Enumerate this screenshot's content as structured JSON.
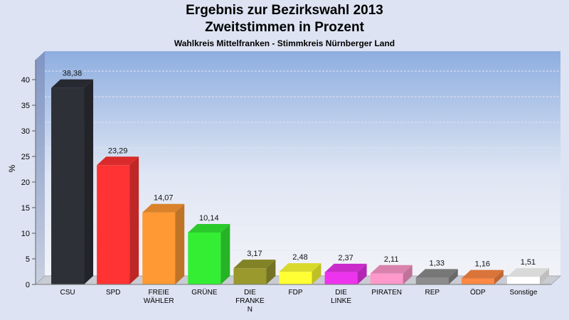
{
  "chart_data": {
    "type": "bar",
    "title": "Ergebnis zur Bezirkswahl 2013",
    "subtitle": "Zweitstimmen in Prozent",
    "subtitle2": "Wahlkreis Mittelfranken - Stimmkreis Nürnberger Land",
    "ylabel": "%",
    "xlabel": "",
    "ylim": [
      0,
      40
    ],
    "yticks": [
      "0",
      "5",
      "10",
      "15",
      "20",
      "25",
      "30",
      "35",
      "40"
    ],
    "categories": [
      [
        "CSU"
      ],
      [
        "SPD"
      ],
      [
        "FREIE",
        "WÄHLER"
      ],
      [
        "GRÜNE"
      ],
      [
        "DIE",
        "FRANKE",
        "N"
      ],
      [
        "FDP"
      ],
      [
        "DIE",
        "LINKE"
      ],
      [
        "PIRATEN"
      ],
      [
        "REP"
      ],
      [
        "ÖDP"
      ],
      [
        "Sonstige"
      ]
    ],
    "values": [
      38.38,
      23.29,
      14.07,
      10.14,
      3.17,
      2.48,
      2.37,
      2.11,
      1.33,
      1.16,
      1.51
    ],
    "value_labels": [
      "38,38",
      "23,29",
      "14,07",
      "10,14",
      "3,17",
      "2,48",
      "2,37",
      "2,11",
      "1,33",
      "1,16",
      "1,51"
    ],
    "colors": [
      "#2e3038",
      "#ff3333",
      "#ff9933",
      "#33ee33",
      "#99992e",
      "#ffff33",
      "#ee33ee",
      "#ff99cc",
      "#8c8c8c",
      "#ff8844",
      "#ffffff"
    ],
    "grid": true,
    "legend": "none"
  }
}
